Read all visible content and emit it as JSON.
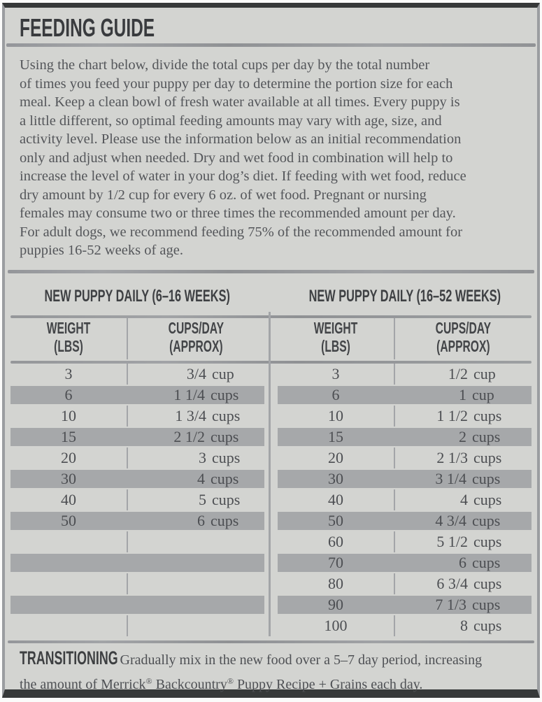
{
  "page": {
    "title": "FEEDING GUIDE",
    "intro_lines": [
      "Using the chart below, divide the total cups per day by the total number",
      "of times you feed your puppy per day to determine the portion size for each",
      "meal. Keep a clean bowl of fresh water available at all times. Every puppy is",
      "a little different, so optimal feeding amounts may vary with age, size, and",
      "activity level. Please use the information below as an initial recommendation",
      "only and adjust when needed. Dry and wet food in combination will help to",
      "increase the level of water in your dog’s diet. If feeding with wet food, reduce",
      "dry amount by 1/2 cup for every 6 oz. of wet food. Pregnant or nursing",
      "females may consume two or three times the recommended amount per day.",
      "For adult dogs, we recommend feeding 75% of the recommended amount for",
      "puppies 16-52 weeks of age."
    ],
    "tables": [
      {
        "title": "NEW PUPPY DAILY (6–16 WEEKS)",
        "col1_header": [
          "WEIGHT",
          "(LBS)"
        ],
        "col2_header": [
          "CUPS/DAY",
          "(APPROX)"
        ],
        "rows": [
          {
            "weight": "3",
            "amount": "3/4",
            "unit": "cup"
          },
          {
            "weight": "6",
            "amount": "1 1/4",
            "unit": "cups"
          },
          {
            "weight": "10",
            "amount": "1 3/4",
            "unit": "cups"
          },
          {
            "weight": "15",
            "amount": "2 1/2",
            "unit": "cups"
          },
          {
            "weight": "20",
            "amount": "3",
            "unit": "cups"
          },
          {
            "weight": "30",
            "amount": "4",
            "unit": "cups"
          },
          {
            "weight": "40",
            "amount": "5",
            "unit": "cups"
          },
          {
            "weight": "50",
            "amount": "6",
            "unit": "cups"
          },
          {
            "weight": "",
            "amount": "",
            "unit": ""
          },
          {
            "weight": "",
            "amount": "",
            "unit": ""
          },
          {
            "weight": "",
            "amount": "",
            "unit": ""
          },
          {
            "weight": "",
            "amount": "",
            "unit": ""
          },
          {
            "weight": "",
            "amount": "",
            "unit": ""
          }
        ]
      },
      {
        "title": "NEW PUPPY DAILY (16–52 WEEKS)",
        "col1_header": [
          "WEIGHT",
          "(LBS)"
        ],
        "col2_header": [
          "CUPS/DAY",
          "(APPROX)"
        ],
        "rows": [
          {
            "weight": "3",
            "amount": "1/2",
            "unit": "cup"
          },
          {
            "weight": "6",
            "amount": "1",
            "unit": "cup"
          },
          {
            "weight": "10",
            "amount": "1 1/2",
            "unit": "cups"
          },
          {
            "weight": "15",
            "amount": "2",
            "unit": "cups"
          },
          {
            "weight": "20",
            "amount": "2 1/3",
            "unit": "cups"
          },
          {
            "weight": "30",
            "amount": "3 1/4",
            "unit": "cups"
          },
          {
            "weight": "40",
            "amount": "4",
            "unit": "cups"
          },
          {
            "weight": "50",
            "amount": "4 3/4",
            "unit": "cups"
          },
          {
            "weight": "60",
            "amount": "5 1/2",
            "unit": "cups"
          },
          {
            "weight": "70",
            "amount": "6",
            "unit": "cups"
          },
          {
            "weight": "80",
            "amount": "6 3/4",
            "unit": "cups"
          },
          {
            "weight": "90",
            "amount": "7 1/3",
            "unit": "cups"
          },
          {
            "weight": "100",
            "amount": "8",
            "unit": "cups"
          }
        ]
      }
    ],
    "transitioning": {
      "label": "TRANSITIONING",
      "line1_rest": ": Gradually mix in the new food over a 5–7 day period, increasing",
      "line2_segments": [
        {
          "text": "the amount of Merrick"
        },
        {
          "text": "®",
          "sup": true
        },
        {
          "text": " Backcountry"
        },
        {
          "text": "®",
          "sup": true
        },
        {
          "text": " Puppy Recipe + Grains each day."
        }
      ]
    },
    "colors": {
      "background": "#d3d4d1",
      "shaded_band": "#a6a8aa",
      "border_dark": "#373939",
      "border_side": "#9b9da0",
      "rule": "#96989b",
      "heading_text": "#3e4043",
      "body_text": "#54565a"
    }
  }
}
